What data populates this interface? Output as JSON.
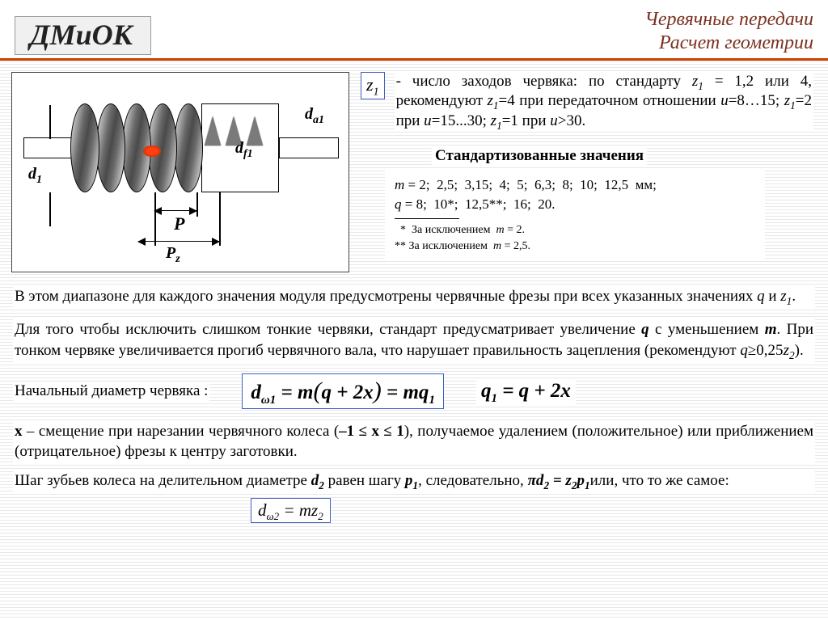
{
  "header": {
    "logo": "ДМиОК",
    "title1": "Червячные передачи",
    "title2": "Расчет геометрии"
  },
  "diagram": {
    "d1": "d₁",
    "df1": "d_f1",
    "da1": "d_a1",
    "P": "P",
    "Pz": "P_z"
  },
  "z1": {
    "symbol": "z₁",
    "text": "- число заходов червяка: по стандарту z₁ = 1,2 или 4, рекомендуют z₁=4 при передаточном отношении u=8…15; z₁=2 при u=15...30; z₁=1 при u>30."
  },
  "std": {
    "title": "Стандартизованные значения",
    "m_line": "m = 2;  2,5;  3,15;  4;  5;  6,3;  8;  10;  12,5  мм;",
    "q_line": "q = 8;  10*;  12,5**;  16;  20.",
    "note1": "*  За исключением  m = 2.",
    "note2": "** За исключением  m = 2,5."
  },
  "body": {
    "p1": "В этом диапазоне для каждого значения модуля предусмотрены червячные фрезы при всех указанных значениях q и z₁.",
    "p2": "Для того чтобы исключить слишком тонкие червяки, стандарт предусматривает увеличение q с уменьшением m. При тонком червяке увеличивается прогиб червячного вала, что нарушает правильность зацепления (рекомендуют q≥0,25z₂).",
    "diam_label": "Начальный диаметр червяка :",
    "formula_main": "d_ω1 = m(q + 2x) = mq₁",
    "formula_aux": "q₁ = q + 2x",
    "p3": "x – смещение при нарезании червячного колеса (–1 ≤ x ≤ 1), получаемое удалением (положительное) или приближением (отрицательное) фрезы к центру заготовки.",
    "p4": "Шаг зубьев колеса на делительном диаметре d₂ равен шагу p₁, следовательно, πd₂ = z₂p₁ или, что то же самое:",
    "formula_small": "d_ω2 = mz₂"
  },
  "colors": {
    "accent_rule": "#d04000",
    "title_text": "#7a3020",
    "formula_border": "#4060c0"
  }
}
